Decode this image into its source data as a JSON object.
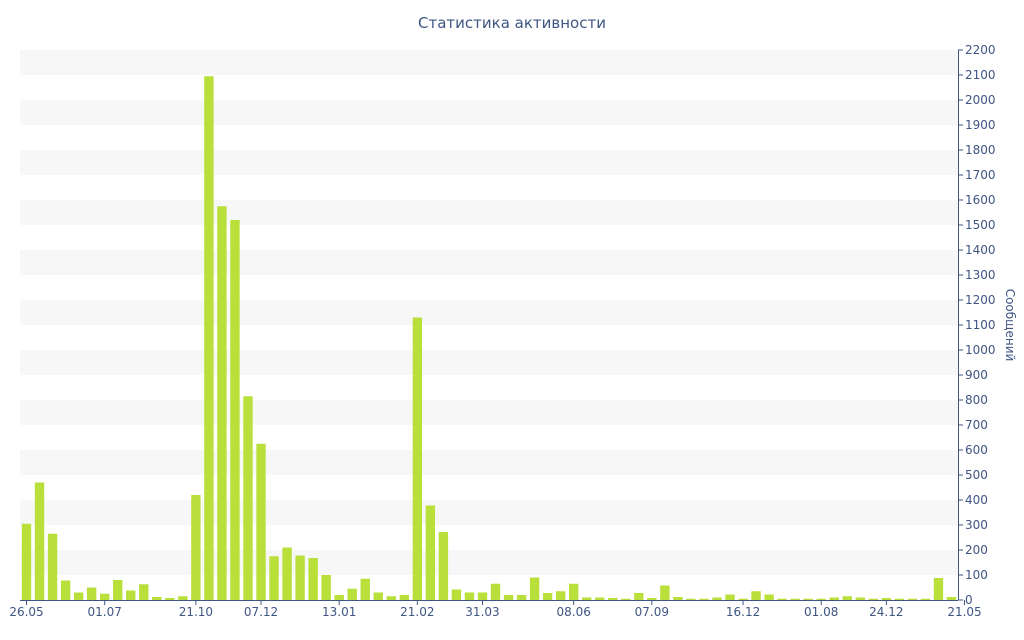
{
  "chart_data": {
    "type": "bar",
    "title": "Статистика активности",
    "ylabel": "Сообщений",
    "ylim": [
      0,
      2200
    ],
    "ytick_step": 100,
    "x_tick_labels": [
      "26.05",
      "01.07",
      "21.10",
      "07.12",
      "13.01",
      "21.02",
      "31.03",
      "08.06",
      "07.09",
      "16.12",
      "01.08",
      "24.12",
      "21.05"
    ],
    "x_tick_positions": [
      0,
      6,
      13,
      18,
      24,
      30,
      35,
      42,
      48,
      55,
      61,
      66,
      72
    ],
    "bar_color": "#b9df3a",
    "grid_band_color": "#f7f7f7",
    "axis_color": "#3f5583",
    "values": [
      305,
      470,
      265,
      78,
      30,
      50,
      25,
      80,
      38,
      63,
      12,
      8,
      15,
      420,
      2095,
      1575,
      1520,
      815,
      625,
      175,
      210,
      178,
      168,
      100,
      20,
      45,
      85,
      30,
      15,
      20,
      1130,
      378,
      272,
      42,
      30,
      30,
      65,
      20,
      20,
      90,
      28,
      35,
      65,
      10,
      10,
      8,
      5,
      28,
      8,
      58,
      12,
      5,
      5,
      10,
      22,
      5,
      35,
      22,
      5,
      5,
      5,
      5,
      10,
      15,
      10,
      5,
      8,
      5,
      5,
      5,
      88,
      12
    ]
  }
}
